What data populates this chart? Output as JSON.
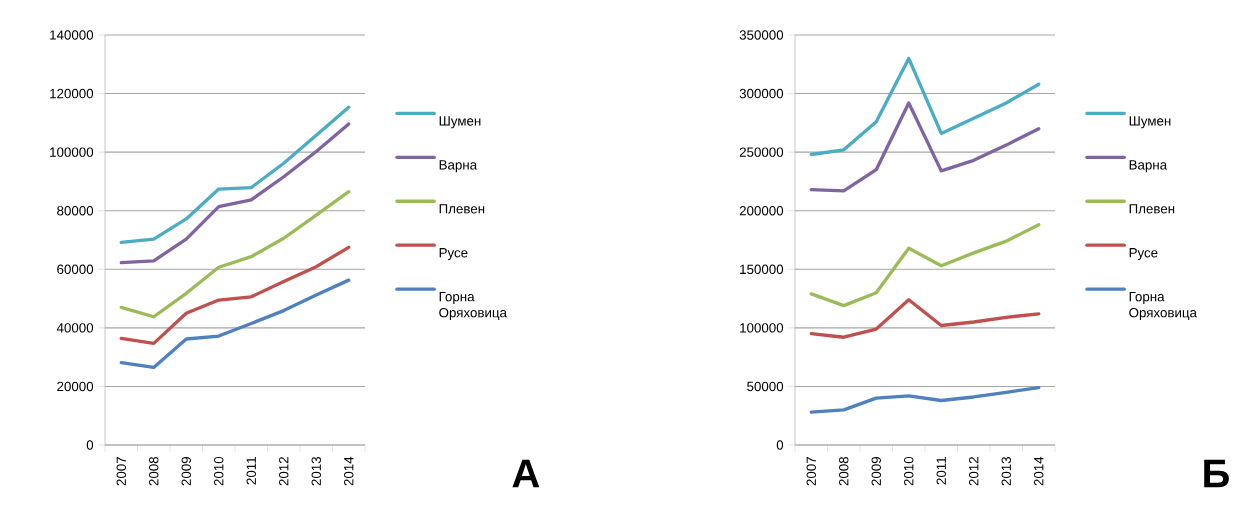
{
  "chart_data": [
    {
      "type": "line",
      "categories": [
        "2007",
        "2008",
        "2009",
        "2010",
        "2011",
        "2012",
        "2013",
        "2014"
      ],
      "ylim": [
        0,
        140000
      ],
      "yticks": [
        0,
        20000,
        40000,
        60000,
        80000,
        100000,
        120000,
        140000
      ],
      "grid": "y",
      "legend": "right",
      "line_style": "solid",
      "annotations": [
        "А"
      ],
      "series": [
        {
          "name": "Шумен",
          "color": "#4bacc6",
          "values": [
            69200,
            70300,
            77200,
            87400,
            87900,
            96200,
            105800,
            115300
          ]
        },
        {
          "name": "Варна",
          "color": "#8064a2",
          "values": [
            62300,
            62900,
            70300,
            81400,
            83700,
            91600,
            100200,
            109600
          ]
        },
        {
          "name": "Плевен",
          "color": "#9bbb59",
          "values": [
            47000,
            43800,
            51800,
            60700,
            64300,
            70600,
            78500,
            86500
          ]
        },
        {
          "name": "Русе",
          "color": "#c0504d",
          "values": [
            36400,
            34700,
            45000,
            49500,
            50600,
            55800,
            60900,
            67500
          ]
        },
        {
          "name": "Горна Оряховица",
          "color": "#4f81bd",
          "values": [
            28100,
            26500,
            36200,
            37200,
            41500,
            45900,
            51200,
            56300
          ]
        }
      ]
    },
    {
      "type": "line",
      "categories": [
        "2007",
        "2008",
        "2009",
        "2010",
        "2011",
        "2012",
        "2013",
        "2014"
      ],
      "ylim": [
        0,
        350000
      ],
      "yticks": [
        0,
        50000,
        100000,
        150000,
        200000,
        250000,
        300000,
        350000
      ],
      "grid": "y",
      "legend": "right",
      "line_style": "solid",
      "annotations": [
        "Б"
      ],
      "series": [
        {
          "name": "Шумен",
          "color": "#4bacc6",
          "values": [
            248000,
            252000,
            276000,
            330000,
            266000,
            279000,
            292000,
            308000
          ]
        },
        {
          "name": "Варна",
          "color": "#8064a2",
          "values": [
            218000,
            217000,
            235000,
            292000,
            234000,
            243000,
            256000,
            270000
          ]
        },
        {
          "name": "Плевен",
          "color": "#9bbb59",
          "values": [
            129000,
            119000,
            130000,
            168000,
            153000,
            164000,
            174000,
            188000
          ]
        },
        {
          "name": "Русе",
          "color": "#c0504d",
          "values": [
            95000,
            92000,
            99000,
            124000,
            102000,
            105000,
            109000,
            112000
          ]
        },
        {
          "name": "Горна Оряховица",
          "color": "#4f81bd",
          "values": [
            28000,
            30000,
            40000,
            42000,
            38000,
            41000,
            45000,
            49000
          ]
        }
      ]
    }
  ]
}
